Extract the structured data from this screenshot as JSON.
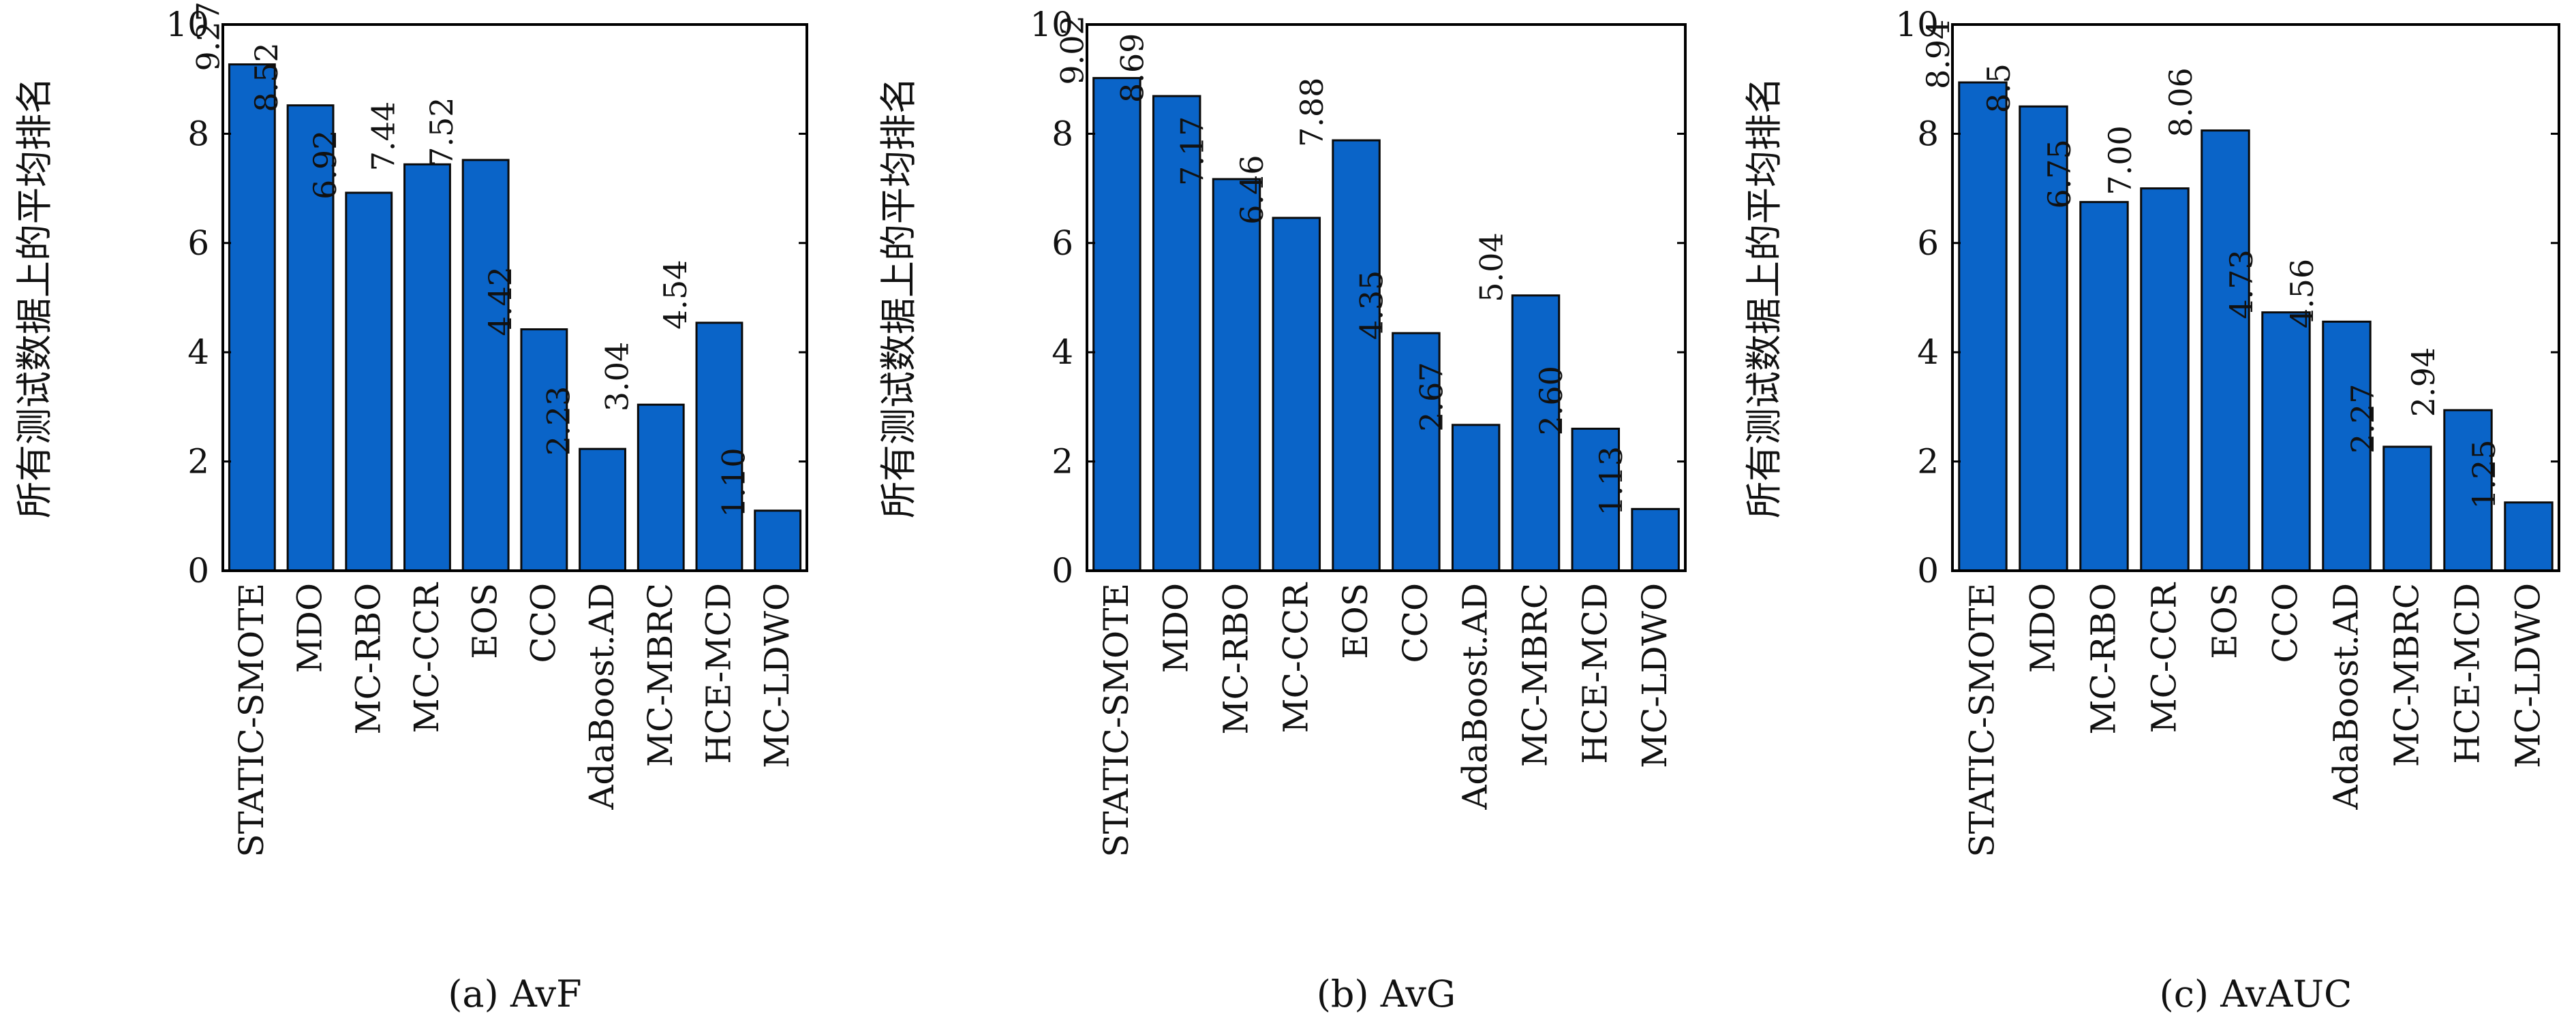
{
  "figure": {
    "ylabel": "所有测试数据上的平均排名",
    "colors": {
      "bar": "#0a64c8",
      "bar_stroke": "#0a0a0a",
      "axis": "#000000"
    }
  },
  "chart_data": [
    {
      "type": "bar",
      "caption": "(a) AvF",
      "title": "",
      "xlabel": "",
      "ylabel": "所有测试数据上的平均排名",
      "ylim": [
        0,
        10
      ],
      "yticks": [
        "0",
        "2",
        "4",
        "6",
        "8",
        "10"
      ],
      "categories": [
        "STATIC-SMOTE",
        "MDO",
        "MC-RBO",
        "MC-CCR",
        "EOS",
        "CCO",
        "AdaBoost.AD",
        "MC-MBRC",
        "HCE-MCD",
        "MC-LDWO"
      ],
      "values": [
        9.27,
        8.52,
        6.92,
        7.44,
        7.52,
        4.42,
        2.23,
        3.04,
        4.54,
        1.1
      ],
      "labels": [
        "9.27",
        "8.52",
        "6.92",
        "7.44",
        "7.52",
        "4.42",
        "2.23",
        "3.04",
        "4.54",
        "1.10"
      ],
      "grid": false,
      "legend": "none"
    },
    {
      "type": "bar",
      "caption": "(b) AvG",
      "title": "",
      "xlabel": "",
      "ylabel": "所有测试数据上的平均排名",
      "ylim": [
        0,
        10
      ],
      "yticks": [
        "0",
        "2",
        "4",
        "6",
        "8",
        "10"
      ],
      "categories": [
        "STATIC-SMOTE",
        "MDO",
        "MC-RBO",
        "MC-CCR",
        "EOS",
        "CCO",
        "AdaBoost.AD",
        "MC-MBRC",
        "HCE-MCD",
        "MC-LDWO"
      ],
      "values": [
        9.02,
        8.69,
        7.17,
        6.46,
        7.88,
        4.35,
        2.67,
        5.04,
        2.6,
        1.13
      ],
      "labels": [
        "9.02",
        "8.69",
        "7.17",
        "6.46",
        "7.88",
        "4.35",
        "2.67",
        "5.04",
        "2.60",
        "1.13"
      ],
      "grid": false,
      "legend": "none"
    },
    {
      "type": "bar",
      "caption": "(c) AvAUC",
      "title": "",
      "xlabel": "",
      "ylabel": "所有测试数据上的平均排名",
      "ylim": [
        0,
        10
      ],
      "yticks": [
        "0",
        "2",
        "4",
        "6",
        "8",
        "10"
      ],
      "categories": [
        "STATIC-SMOTE",
        "MDO",
        "MC-RBO",
        "MC-CCR",
        "EOS",
        "CCO",
        "AdaBoost.AD",
        "MC-MBRC",
        "HCE-MCD",
        "MC-LDWO"
      ],
      "values": [
        8.94,
        8.5,
        6.75,
        7.0,
        8.06,
        4.73,
        4.56,
        2.27,
        2.94,
        1.25
      ],
      "labels": [
        "8.94",
        "8.5",
        "6.75",
        "7.00",
        "8.06",
        "4.73",
        "4.56",
        "2.27",
        "2.94",
        "1.25"
      ],
      "grid": false,
      "legend": "none"
    }
  ]
}
